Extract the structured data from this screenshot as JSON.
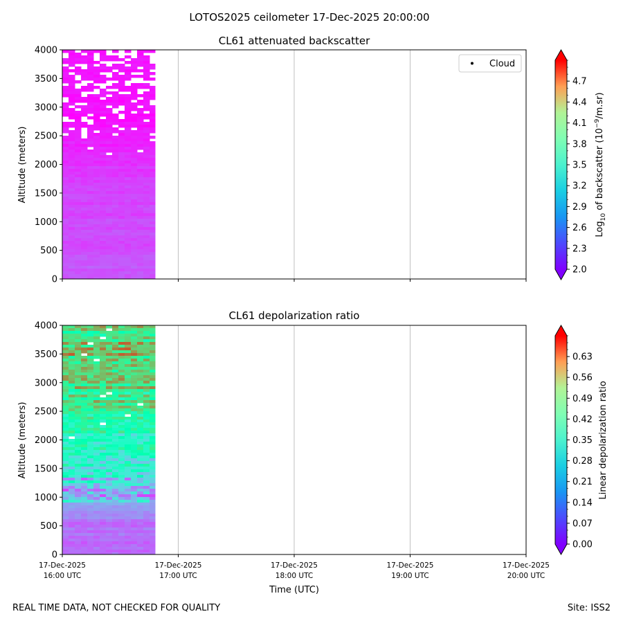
{
  "figure": {
    "suptitle": "LOTOS2025 ceilometer 17-Dec-2025 20:00:00",
    "footer_left": "REAL TIME DATA, NOT CHECKED FOR QUALITY",
    "footer_right": "Site: ISS2"
  },
  "chart_data": [
    {
      "type": "heatmap",
      "title": "CL61 attenuated backscatter",
      "ylabel": "Altitude (meters)",
      "ylim": [
        0,
        4000
      ],
      "yticks": [
        "0",
        "500",
        "1000",
        "1500",
        "2000",
        "2500",
        "3000",
        "3500",
        "4000"
      ],
      "yvalues": [
        0,
        500,
        1000,
        1500,
        2000,
        2500,
        3000,
        3500,
        4000
      ],
      "x_range_hours_utc": [
        16,
        20
      ],
      "data_extent_hours_utc": [
        16,
        16.8
      ],
      "grid": "vertical at x ticks",
      "legend": {
        "placement": "upper right",
        "entries": [
          {
            "label": "Cloud",
            "marker": "dot",
            "color": "#000000"
          }
        ]
      },
      "colorbar": {
        "label": "Log10 of backscatter (10^-9/m.sr)",
        "label_main": "Log",
        "label_sub": "10",
        "label_mid": " of backscatter (10",
        "label_sup": "−9",
        "label_end": "/m.sr)",
        "colormap": "rainbow",
        "min": 2.0,
        "max": 5.0,
        "ticks": [
          "2.0",
          "2.3",
          "2.6",
          "2.9",
          "3.2",
          "3.5",
          "3.8",
          "4.1",
          "4.4",
          "4.7"
        ],
        "tick_values": [
          2.0,
          2.3,
          2.6,
          2.9,
          3.2,
          3.5,
          3.8,
          4.1,
          4.4,
          4.7
        ],
        "extend": "both"
      },
      "profile_summary": [
        {
          "altitude": 0,
          "value": 2.35
        },
        {
          "altitude": 500,
          "value": 2.3
        },
        {
          "altitude": 1000,
          "value": 2.28
        },
        {
          "altitude": 1500,
          "value": 2.25
        },
        {
          "altitude": 2000,
          "value": 2.2
        },
        {
          "altitude": 2500,
          "value": 2.1
        },
        {
          "altitude": 3000,
          "value": 2.05
        },
        {
          "altitude": 3500,
          "value": 2.1
        },
        {
          "altitude": 4000,
          "value": 2.05
        }
      ]
    },
    {
      "type": "heatmap",
      "title": "CL61 depolarization ratio",
      "ylabel": "Altitude (meters)",
      "xlabel": "Time (UTC)",
      "ylim": [
        0,
        4000
      ],
      "yticks": [
        "0",
        "500",
        "1000",
        "1500",
        "2000",
        "2500",
        "3000",
        "3500",
        "4000"
      ],
      "yvalues": [
        0,
        500,
        1000,
        1500,
        2000,
        2500,
        3000,
        3500,
        4000
      ],
      "x_range_hours_utc": [
        16,
        20
      ],
      "data_extent_hours_utc": [
        16,
        16.8
      ],
      "xticks": [
        {
          "value": 16,
          "line1": "17-Dec-2025",
          "line2": "16:00 UTC"
        },
        {
          "value": 17,
          "line1": "17-Dec-2025",
          "line2": "17:00 UTC"
        },
        {
          "value": 18,
          "line1": "17-Dec-2025",
          "line2": "18:00 UTC"
        },
        {
          "value": 19,
          "line1": "17-Dec-2025",
          "line2": "19:00 UTC"
        },
        {
          "value": 20,
          "line1": "17-Dec-2025",
          "line2": "20:00 UTC"
        }
      ],
      "grid": "vertical at x ticks",
      "colorbar": {
        "label": "Linear depolarization ratio",
        "colormap": "rainbow",
        "min": 0.0,
        "max": 0.7,
        "ticks": [
          "0.00",
          "0.07",
          "0.14",
          "0.21",
          "0.28",
          "0.35",
          "0.42",
          "0.49",
          "0.56",
          "0.63"
        ],
        "tick_values": [
          0.0,
          0.07,
          0.14,
          0.21,
          0.28,
          0.35,
          0.42,
          0.49,
          0.56,
          0.63
        ],
        "extend": "both"
      },
      "profile_summary": [
        {
          "altitude": 0,
          "value": 0.1
        },
        {
          "altitude": 500,
          "value": 0.1
        },
        {
          "altitude": 1000,
          "value": 0.17
        },
        {
          "altitude": 1500,
          "value": 0.25
        },
        {
          "altitude": 2000,
          "value": 0.33
        },
        {
          "altitude": 2500,
          "value": 0.42
        },
        {
          "altitude": 3000,
          "value": 0.45
        },
        {
          "altitude": 3500,
          "value": 0.5
        },
        {
          "altitude": 4000,
          "value": 0.45
        }
      ]
    }
  ]
}
